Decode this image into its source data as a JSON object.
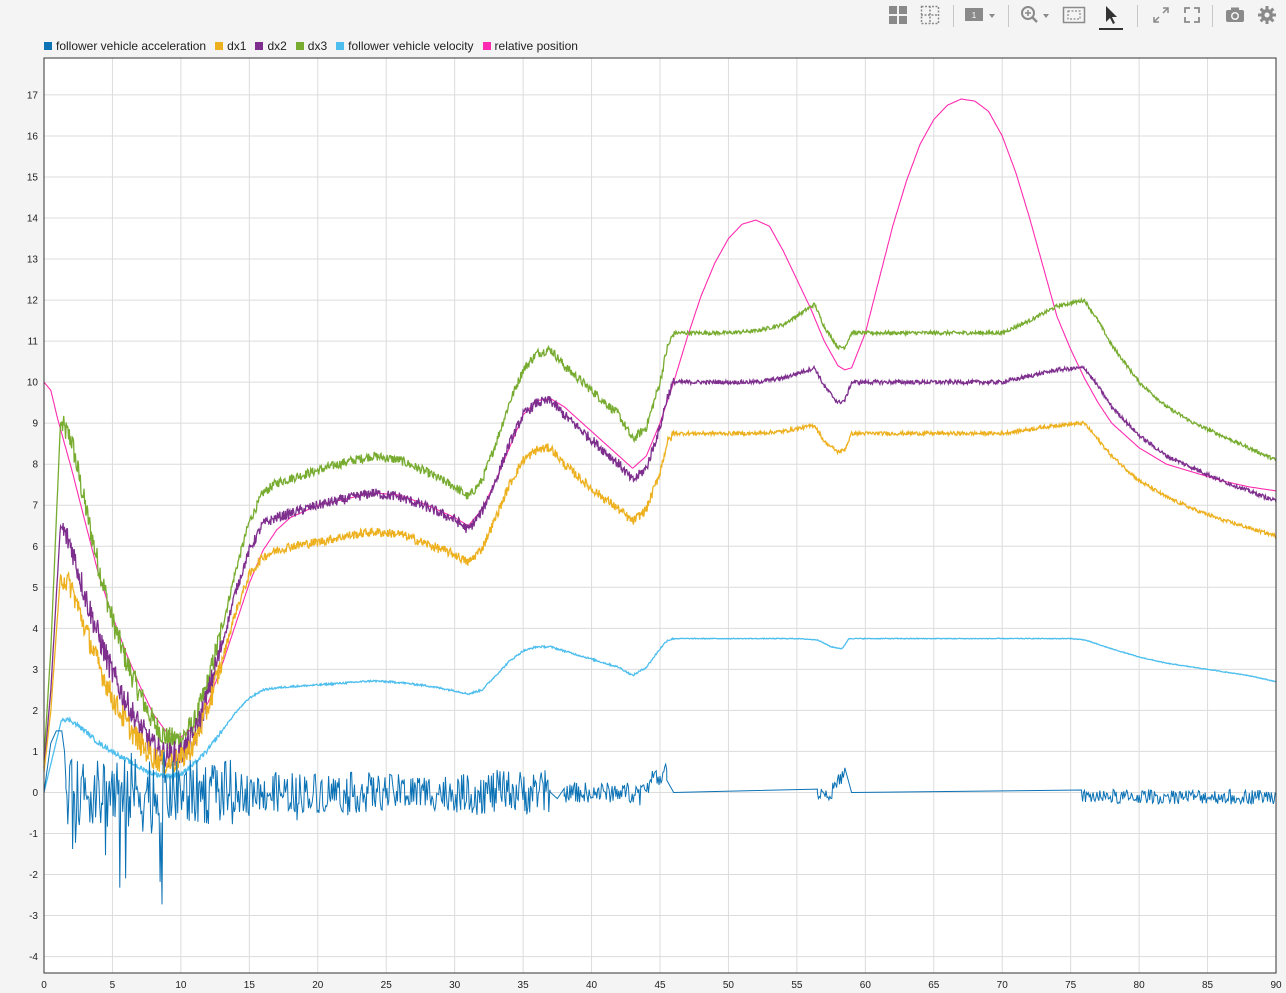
{
  "toolbar": {
    "buttons": [
      {
        "name": "layout-grid-icon",
        "active": false
      },
      {
        "name": "cursor-grid-icon",
        "active": false
      },
      {
        "name": "axes-selector-icon",
        "label": "1",
        "active": false
      },
      {
        "name": "zoom-in-icon",
        "active": false
      },
      {
        "name": "zoom-box-icon",
        "active": false
      },
      {
        "name": "select-pointer-icon",
        "active": true
      },
      {
        "name": "expand-icon",
        "active": false
      },
      {
        "name": "fit-to-view-icon",
        "active": false
      },
      {
        "name": "camera-icon",
        "active": false
      },
      {
        "name": "settings-gear-icon",
        "active": false
      }
    ],
    "axes_label": "1"
  },
  "legend": [
    {
      "label": "follower vehicle acceleration",
      "color": "#0b72b5"
    },
    {
      "label": "dx1",
      "color": "#edb120"
    },
    {
      "label": "dx2",
      "color": "#7e2f8e"
    },
    {
      "label": "dx3",
      "color": "#77ac30"
    },
    {
      "label": "follower vehicle velocity",
      "color": "#4dbeee"
    },
    {
      "label": "relative position",
      "color": "#ff2bb0"
    }
  ],
  "chart_data": {
    "type": "line",
    "xlim": [
      0,
      90
    ],
    "ylim": [
      -4.4,
      17.9
    ],
    "grid": true,
    "legend_position": "top-left",
    "x_ticks": [
      "0",
      "5",
      "10",
      "15",
      "20",
      "25",
      "30",
      "35",
      "40",
      "45",
      "50",
      "55",
      "60",
      "65",
      "70",
      "75",
      "80",
      "85",
      "90"
    ],
    "y_ticks": [
      "-4",
      "-3",
      "-2",
      "-1",
      "0",
      "1",
      "2",
      "3",
      "4",
      "5",
      "6",
      "7",
      "8",
      "9",
      "10",
      "11",
      "12",
      "13",
      "14",
      "15",
      "16",
      "17"
    ],
    "series": [
      {
        "name": "relative position",
        "color": "#ff2bb0",
        "noise": 0,
        "x": [
          0,
          0.5,
          1,
          2,
          3,
          4,
          5,
          6,
          7,
          8,
          9,
          10,
          11,
          12,
          13,
          14,
          15,
          16,
          17,
          18,
          20,
          22,
          24,
          26,
          28,
          30,
          31,
          32,
          33,
          34,
          35,
          36,
          37,
          38,
          39,
          40,
          41,
          42,
          43,
          44,
          45,
          46,
          47,
          48,
          49,
          50,
          51,
          52,
          53,
          54,
          55,
          56,
          57,
          58,
          58.5,
          59,
          60,
          61,
          62,
          63,
          64,
          65,
          66,
          67,
          68,
          69,
          70,
          71,
          72,
          73,
          74,
          75,
          76,
          77,
          78,
          79,
          80,
          82,
          84,
          86,
          88,
          90
        ],
        "y": [
          10,
          9.8,
          9.1,
          7.9,
          6.6,
          5.3,
          4.3,
          3.4,
          2.6,
          1.9,
          1.45,
          1.35,
          1.6,
          2.2,
          3.1,
          4.1,
          5.1,
          5.9,
          6.4,
          6.7,
          7.0,
          7.15,
          7.3,
          7.25,
          7.0,
          6.7,
          6.5,
          6.9,
          7.6,
          8.4,
          9.2,
          9.55,
          9.6,
          9.4,
          9.1,
          8.8,
          8.5,
          8.2,
          7.9,
          8.2,
          9.0,
          10.0,
          11.1,
          12.1,
          12.9,
          13.5,
          13.85,
          13.95,
          13.8,
          13.2,
          12.5,
          11.8,
          11.0,
          10.4,
          10.3,
          10.35,
          11.2,
          12.5,
          13.8,
          14.9,
          15.8,
          16.4,
          16.75,
          16.9,
          16.85,
          16.6,
          16.0,
          15.1,
          14.0,
          12.8,
          11.6,
          10.8,
          10.1,
          9.5,
          9.0,
          8.7,
          8.4,
          8.0,
          7.8,
          7.6,
          7.45,
          7.35
        ]
      },
      {
        "name": "dx3",
        "color": "#77ac30",
        "noise": 0.5,
        "noise_until": 46,
        "x": [
          0,
          0.5,
          1.2,
          2,
          3,
          4,
          5,
          6,
          7,
          8,
          9,
          10,
          11,
          12,
          13,
          14,
          15,
          16,
          17,
          18,
          20,
          22,
          24,
          26,
          28,
          30,
          31,
          32,
          33,
          34,
          35,
          36,
          37,
          38,
          40,
          42,
          43,
          44,
          45,
          45.5,
          46,
          50,
          52,
          54,
          56.3,
          57,
          58,
          58.5,
          59,
          60,
          65,
          70,
          72,
          74,
          76,
          77,
          78,
          80,
          82,
          84,
          86,
          88,
          90
        ],
        "y": [
          0.8,
          3.5,
          9.0,
          8.6,
          7.0,
          5.5,
          4.2,
          3.2,
          2.4,
          1.7,
          1.3,
          1.3,
          1.7,
          2.7,
          4.0,
          5.4,
          6.6,
          7.3,
          7.55,
          7.65,
          7.85,
          8.05,
          8.2,
          8.1,
          7.8,
          7.45,
          7.2,
          7.6,
          8.5,
          9.5,
          10.3,
          10.7,
          10.8,
          10.4,
          9.8,
          9.2,
          8.6,
          8.9,
          10.0,
          10.8,
          11.2,
          11.2,
          11.25,
          11.4,
          11.9,
          11.35,
          10.85,
          10.85,
          11.2,
          11.2,
          11.2,
          11.2,
          11.5,
          11.85,
          12.0,
          11.5,
          10.9,
          10.0,
          9.4,
          9.0,
          8.7,
          8.4,
          8.1
        ]
      },
      {
        "name": "dx2",
        "color": "#7e2f8e",
        "noise": 0.55,
        "noise_until": 46,
        "x": [
          0,
          0.5,
          1.2,
          2,
          3,
          4,
          5,
          6,
          7,
          8,
          9,
          10,
          11,
          12,
          13,
          14,
          15,
          16,
          17,
          18,
          20,
          22,
          24,
          26,
          28,
          30,
          31,
          32,
          33,
          34,
          35,
          36,
          37,
          38,
          40,
          42,
          43,
          44,
          45,
          45.5,
          46,
          50,
          52,
          54,
          56.3,
          57,
          58,
          58.5,
          59,
          60,
          65,
          70,
          72,
          74,
          76,
          77,
          78,
          80,
          82,
          84,
          86,
          88,
          90
        ],
        "y": [
          0.6,
          2.5,
          6.5,
          6.0,
          4.8,
          3.8,
          2.9,
          2.2,
          1.6,
          1.1,
          0.9,
          0.95,
          1.4,
          2.4,
          3.6,
          4.9,
          5.9,
          6.55,
          6.7,
          6.8,
          7.0,
          7.15,
          7.3,
          7.2,
          6.95,
          6.65,
          6.4,
          6.85,
          7.6,
          8.5,
          9.2,
          9.5,
          9.55,
          9.2,
          8.6,
          8.0,
          7.6,
          7.9,
          8.9,
          9.6,
          10.0,
          10.0,
          10.0,
          10.1,
          10.35,
          9.9,
          9.5,
          9.55,
          10.0,
          10.0,
          10.0,
          10.0,
          10.15,
          10.3,
          10.35,
          9.9,
          9.4,
          8.7,
          8.2,
          7.9,
          7.6,
          7.35,
          7.1
        ]
      },
      {
        "name": "dx1",
        "color": "#edb120",
        "noise": 0.5,
        "noise_until": 46,
        "x": [
          0,
          0.5,
          1.2,
          2,
          3,
          4,
          5,
          6,
          7,
          8,
          9,
          10,
          11,
          12,
          13,
          14,
          15,
          16,
          17,
          18,
          20,
          22,
          24,
          26,
          28,
          30,
          31,
          32,
          33,
          34,
          35,
          36,
          37,
          38,
          40,
          42,
          43,
          44,
          45,
          45.5,
          46,
          50,
          52,
          54,
          56.3,
          57,
          58,
          58.5,
          59,
          60,
          65,
          70,
          72,
          74,
          76,
          77,
          78,
          80,
          82,
          84,
          86,
          88,
          90
        ],
        "y": [
          0.5,
          2.0,
          5.3,
          5.0,
          4.0,
          3.1,
          2.3,
          1.7,
          1.2,
          0.85,
          0.7,
          0.8,
          1.2,
          2.1,
          3.2,
          4.4,
          5.3,
          5.75,
          5.9,
          6.0,
          6.1,
          6.25,
          6.35,
          6.3,
          6.05,
          5.8,
          5.6,
          5.95,
          6.7,
          7.5,
          8.1,
          8.35,
          8.4,
          8.0,
          7.4,
          6.9,
          6.6,
          6.9,
          7.8,
          8.5,
          8.75,
          8.75,
          8.75,
          8.8,
          8.95,
          8.55,
          8.3,
          8.35,
          8.75,
          8.75,
          8.75,
          8.75,
          8.85,
          8.95,
          9.0,
          8.6,
          8.2,
          7.6,
          7.2,
          6.9,
          6.65,
          6.45,
          6.25
        ]
      },
      {
        "name": "follower vehicle velocity",
        "color": "#4dbeee",
        "noise": 0.1,
        "noise_until": 46,
        "x": [
          0,
          1.3,
          2,
          3,
          4,
          5,
          6,
          7,
          8,
          9,
          10,
          11,
          12,
          13,
          14,
          15,
          16,
          17,
          18,
          20,
          22,
          24,
          26,
          28,
          30,
          31,
          32,
          33,
          34,
          35,
          36,
          37,
          38,
          40,
          42,
          43,
          44,
          45,
          45.5,
          46,
          50,
          55,
          56.5,
          57.5,
          58.3,
          58.8,
          60,
          65,
          70,
          75,
          76,
          78,
          80,
          82,
          84,
          86,
          88,
          90
        ],
        "y": [
          0,
          1.8,
          1.75,
          1.5,
          1.2,
          1.0,
          0.8,
          0.6,
          0.45,
          0.4,
          0.45,
          0.7,
          1.05,
          1.5,
          1.95,
          2.3,
          2.5,
          2.55,
          2.58,
          2.62,
          2.67,
          2.72,
          2.68,
          2.6,
          2.48,
          2.4,
          2.5,
          2.85,
          3.2,
          3.45,
          3.55,
          3.55,
          3.45,
          3.25,
          3.05,
          2.85,
          3.05,
          3.5,
          3.7,
          3.75,
          3.75,
          3.75,
          3.72,
          3.55,
          3.5,
          3.75,
          3.75,
          3.75,
          3.75,
          3.75,
          3.72,
          3.5,
          3.3,
          3.15,
          3.05,
          2.95,
          2.85,
          2.7
        ]
      },
      {
        "name": "follower vehicle acceleration",
        "color": "#0b72b5",
        "noise": 0,
        "x": [
          0,
          0.5,
          0.9,
          1.3,
          1.5,
          1.6
        ],
        "y": [
          0,
          1.2,
          1.5,
          1.5,
          1.0,
          0.3
        ],
        "segments": [
          {
            "x0": 1.6,
            "x1": 4,
            "amp": 0.8,
            "dip": 1.2
          },
          {
            "x0": 4,
            "x1": 9,
            "amp": 1.0,
            "dip": 2.3
          },
          {
            "x0": 9,
            "x1": 14,
            "amp": 0.8,
            "dip": 1.2
          },
          {
            "x0": 14,
            "x1": 24,
            "amp": 0.5,
            "dip": 0.3
          },
          {
            "x0": 24,
            "x1": 31,
            "amp": 0.45,
            "dip": 0.1
          },
          {
            "x0": 31,
            "x1": 37,
            "amp": 0.55,
            "dip": 0.2
          },
          {
            "x0": 38,
            "x1": 45.5,
            "amp": 0.25,
            "dip": 0.1,
            "ramp": [
              [
                43.5,
                0.0
              ],
              [
                45.2,
                0.5
              ]
            ]
          },
          {
            "x0": 56.5,
            "x1": 58.5,
            "amp": 0.18,
            "dip": 0.1,
            "ramp": [
              [
                57.5,
                0.0
              ],
              [
                58.5,
                0.5
              ]
            ]
          },
          {
            "x0": 75.8,
            "x1": 90,
            "amp": 0.18,
            "dip": 0.05,
            "offset": -0.1
          }
        ],
        "flat": [
          [
            37,
            0
          ],
          [
            37.5,
            -0.15
          ],
          [
            38,
            -0.1
          ],
          [
            45.5,
            0.3
          ],
          [
            46,
            0
          ],
          [
            56.5,
            0
          ],
          [
            58.5,
            0.6
          ],
          [
            59,
            0
          ],
          [
            75.8,
            0
          ]
        ]
      }
    ]
  }
}
